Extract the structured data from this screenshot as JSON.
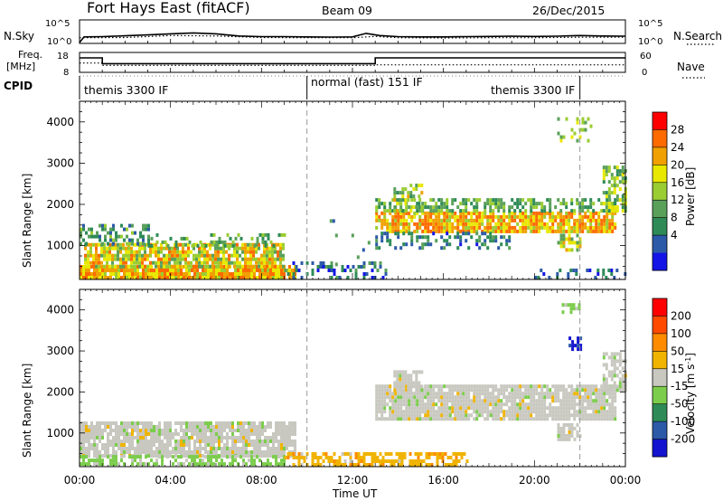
{
  "header": {
    "station": "Fort Hays East (fitACF)",
    "beam": "Beam 09",
    "date": "26/Dec/2015"
  },
  "sky_panel": {
    "left_label": "N.Sky",
    "left_ticks": [
      "10^5",
      "10^0"
    ],
    "right_ticks": [
      "10^5",
      "10^0"
    ],
    "right_label": "N.Search"
  },
  "freq_panel": {
    "left_label_1": "Freq.",
    "left_label_2": "[MHz]",
    "left_ticks": [
      "18",
      "8"
    ],
    "right_ticks": [
      "60",
      "0"
    ],
    "right_label": "Nave"
  },
  "cpid": {
    "label": "CPID",
    "segments": [
      {
        "text": "themis 3300 IF",
        "start_h": 0.0,
        "end_h": 10.0
      },
      {
        "text": "normal (fast) 151 IF",
        "start_h": 10.0,
        "end_h": 22.0
      },
      {
        "text": "themis 3300 IF",
        "start_h": 20.5,
        "end_h": 22.0
      }
    ]
  },
  "colors": {
    "power": [
      "#1414e6",
      "#2d5aa8",
      "#2e8b57",
      "#5aa05a",
      "#9acd32",
      "#e8e800",
      "#f0a000",
      "#ff6a00",
      "#ff0000"
    ],
    "velocity": [
      "#1414d0",
      "#2d5aa8",
      "#2e8b57",
      "#7ccd4c",
      "#c8c8c0",
      "#f0b400",
      "#ff8c00",
      "#ff4a00",
      "#ff0000"
    ],
    "gray_scatter": "#c8c8c0"
  },
  "chart_data": [
    {
      "type": "line",
      "panel": "sky-search-counts",
      "ylim_log": [
        0,
        5
      ],
      "series": [
        {
          "name": "N.Sky",
          "x": [
            0.0,
            0.2,
            1,
            2,
            3,
            4,
            5,
            6,
            7,
            8,
            9,
            10,
            11,
            12,
            12.6,
            13.2,
            14,
            15,
            16,
            17,
            18,
            19,
            20,
            21,
            22,
            23,
            24
          ],
          "y": [
            0,
            1.3,
            1.35,
            1.55,
            1.75,
            2.0,
            2.2,
            2.0,
            1.5,
            1.35,
            1.35,
            1.3,
            1.25,
            1.3,
            2.1,
            1.6,
            1.35,
            1.3,
            1.3,
            1.35,
            1.4,
            1.45,
            1.4,
            1.45,
            1.6,
            1.5,
            1.45
          ]
        },
        {
          "name": "N.Search",
          "x": [
            0,
            2,
            4,
            6,
            8,
            10,
            12,
            13,
            14,
            16,
            18,
            20,
            22,
            24
          ],
          "y": [
            1.1,
            1.15,
            1.6,
            1.5,
            1.15,
            1.1,
            1.1,
            1.4,
            1.1,
            1.05,
            1.1,
            1.1,
            1.2,
            1.2
          ]
        }
      ],
      "xlim": [
        0,
        24
      ]
    },
    {
      "type": "line",
      "panel": "frequency-nave",
      "series": [
        {
          "name": "Freq.",
          "x": [
            0,
            1.0,
            1.0,
            13.0,
            13.0,
            24
          ],
          "y": [
            15.5,
            15.5,
            12.3,
            12.3,
            15.5,
            15.5
          ]
        },
        {
          "name": "Nave",
          "x": [
            0,
            1,
            1,
            13,
            13,
            24
          ],
          "y": [
            28,
            28,
            20,
            20,
            22,
            22
          ]
        }
      ],
      "ylim_freq": [
        8,
        18
      ],
      "ylim_nave": [
        0,
        60
      ],
      "xlim": [
        0,
        24
      ]
    },
    {
      "type": "heatmap",
      "panel": "power",
      "ylabel": "Slant Range [km]",
      "colorbar_label": "Power [dB]",
      "colorbar_ticks": [
        "28",
        "24",
        "20",
        "16",
        "12",
        "8",
        "4"
      ],
      "colorbar_levels": [
        0,
        4,
        8,
        12,
        16,
        20,
        24,
        28,
        32
      ],
      "y_ticks": [
        "4000",
        "3000",
        "2000",
        "1000"
      ],
      "y_tick_values": [
        4000,
        3000,
        2000,
        1000
      ],
      "ylim": [
        180,
        4500
      ],
      "xlim": [
        0,
        24
      ],
      "regions": [
        {
          "x0": 0.0,
          "x1": 9.5,
          "y0": 180,
          "y1": 450,
          "pmin": 18,
          "pmax": 32,
          "density": 0.95
        },
        {
          "x0": 0.2,
          "x1": 9.0,
          "y0": 450,
          "y1": 1000,
          "pmin": 14,
          "pmax": 30,
          "density": 0.8
        },
        {
          "x0": 0.0,
          "x1": 3.0,
          "y0": 1000,
          "y1": 1450,
          "pmin": 6,
          "pmax": 18,
          "density": 0.45
        },
        {
          "x0": 3.0,
          "x1": 9.0,
          "y0": 950,
          "y1": 1250,
          "pmin": 8,
          "pmax": 20,
          "density": 0.3
        },
        {
          "x0": 9.0,
          "x1": 13.5,
          "y0": 180,
          "y1": 550,
          "pmin": 2,
          "pmax": 14,
          "density": 0.35
        },
        {
          "x0": 11.0,
          "x1": 13.0,
          "y0": 500,
          "y1": 1800,
          "pmin": 3,
          "pmax": 16,
          "density": 0.06
        },
        {
          "x0": 13.0,
          "x1": 23.5,
          "y0": 1300,
          "y1": 1800,
          "pmin": 18,
          "pmax": 32,
          "density": 0.85
        },
        {
          "x0": 13.0,
          "x1": 23.5,
          "y0": 1800,
          "y1": 2150,
          "pmin": 8,
          "pmax": 20,
          "density": 0.55
        },
        {
          "x0": 13.0,
          "x1": 19.0,
          "y0": 900,
          "y1": 1300,
          "pmin": 3,
          "pmax": 14,
          "density": 0.3
        },
        {
          "x0": 13.8,
          "x1": 15.0,
          "y0": 1800,
          "y1": 2500,
          "pmin": 10,
          "pmax": 26,
          "density": 0.5
        },
        {
          "x0": 21.0,
          "x1": 22.0,
          "y0": 850,
          "y1": 1250,
          "pmin": 12,
          "pmax": 26,
          "density": 0.6
        },
        {
          "x0": 23.0,
          "x1": 24.0,
          "y0": 1800,
          "y1": 2900,
          "pmin": 10,
          "pmax": 24,
          "density": 0.6
        },
        {
          "x0": 21.0,
          "x1": 22.5,
          "y0": 3500,
          "y1": 4100,
          "pmin": 12,
          "pmax": 22,
          "density": 0.3
        },
        {
          "x0": 20.0,
          "x1": 24.0,
          "y0": 180,
          "y1": 400,
          "pmin": 2,
          "pmax": 12,
          "density": 0.25
        }
      ]
    },
    {
      "type": "heatmap",
      "panel": "velocity",
      "ylabel": "Slant Range [km]",
      "colorbar_label": "Velocity [m s-1]",
      "colorbar_ticks": [
        "200",
        "100",
        "50",
        "15",
        "-15",
        "-50",
        "-100",
        "-200"
      ],
      "colorbar_levels": [
        300,
        200,
        100,
        50,
        15,
        -15,
        -50,
        -100,
        -200,
        -300
      ],
      "y_ticks": [
        "4000",
        "3000",
        "2000",
        "1000"
      ],
      "y_tick_values": [
        4000,
        3000,
        2000,
        1000
      ],
      "ylim": [
        180,
        4500
      ],
      "xlim": [
        0,
        24
      ],
      "xlabel": "Time UT",
      "x_ticks": [
        "00:00",
        "04:00",
        "08:00",
        "12:00",
        "16:00",
        "20:00",
        "00:00"
      ],
      "x_tick_values": [
        0,
        4,
        8,
        12,
        16,
        20,
        24
      ],
      "regions": [
        {
          "x0": 0.0,
          "x1": 9.5,
          "y0": 400,
          "y1": 1200,
          "kind": "gray",
          "density": 0.85
        },
        {
          "x0": 0.0,
          "x1": 9.0,
          "y0": 200,
          "y1": 450,
          "kind": "green",
          "density": 0.55
        },
        {
          "x0": 9.0,
          "x1": 17.0,
          "y0": 180,
          "y1": 500,
          "kind": "orange",
          "density": 0.6
        },
        {
          "x0": 13.0,
          "x1": 23.5,
          "y0": 1300,
          "y1": 2150,
          "kind": "gray",
          "density": 0.9
        },
        {
          "x0": 13.8,
          "x1": 15.0,
          "y0": 2000,
          "y1": 2500,
          "kind": "gray",
          "density": 0.7
        },
        {
          "x0": 21.0,
          "x1": 22.0,
          "y0": 800,
          "y1": 1200,
          "kind": "gray",
          "density": 0.7
        },
        {
          "x0": 23.0,
          "x1": 24.0,
          "y0": 2000,
          "y1": 2900,
          "kind": "gray",
          "density": 0.7
        },
        {
          "x0": 21.2,
          "x1": 22.0,
          "y0": 3900,
          "y1": 4150,
          "kind": "green",
          "density": 0.6
        },
        {
          "x0": 21.5,
          "x1": 22.0,
          "y0": 3000,
          "y1": 3350,
          "kind": "blue",
          "density": 0.6
        },
        {
          "x0": 13.5,
          "x1": 19.0,
          "y0": 1300,
          "y1": 1450,
          "kind": "green",
          "density": 0.05
        }
      ]
    }
  ]
}
